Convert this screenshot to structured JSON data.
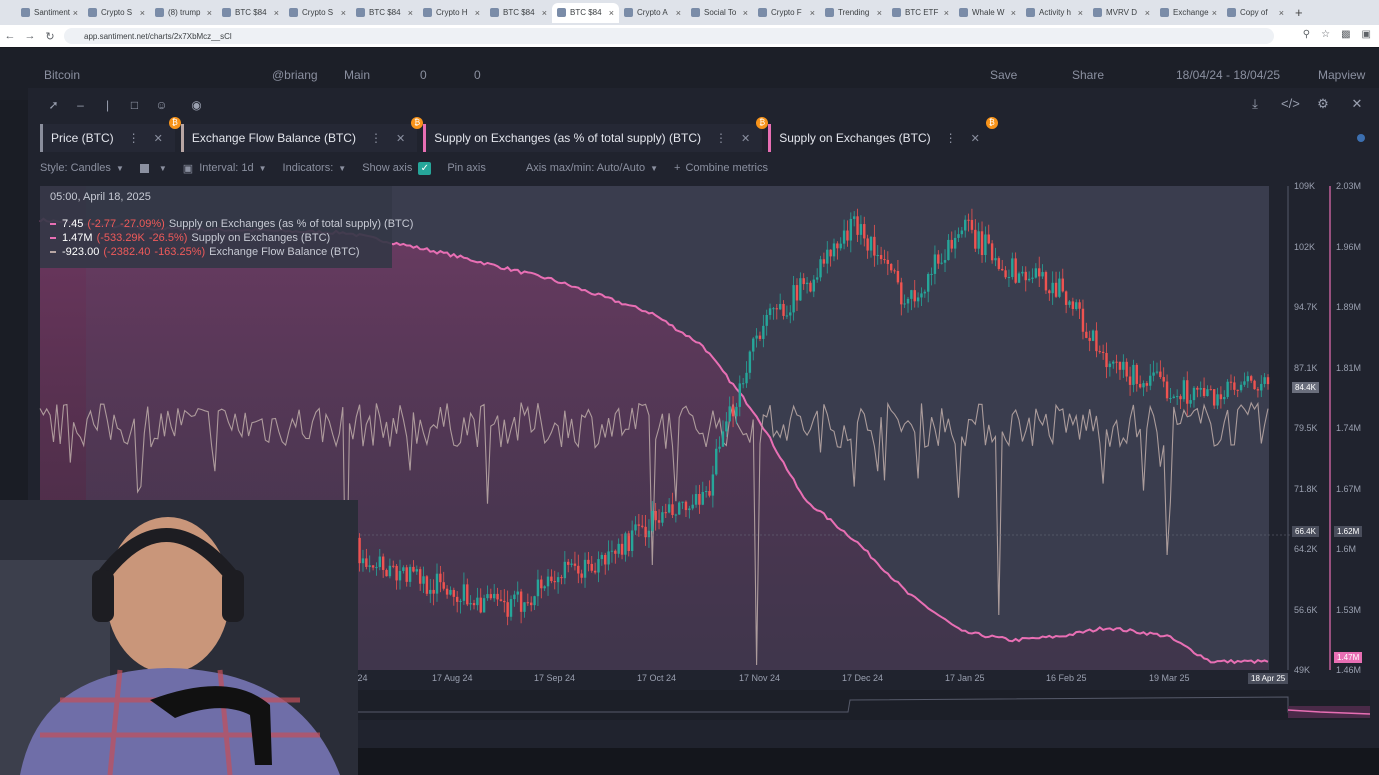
{
  "browser": {
    "tabs": [
      {
        "label": "Santiment"
      },
      {
        "label": "Crypto S"
      },
      {
        "label": "(8) trump"
      },
      {
        "label": "BTC $84"
      },
      {
        "label": "Crypto S"
      },
      {
        "label": "BTC $84"
      },
      {
        "label": "Crypto H"
      },
      {
        "label": "BTC $84"
      },
      {
        "label": "BTC $84",
        "active": true
      },
      {
        "label": "Crypto A"
      },
      {
        "label": "Social To"
      },
      {
        "label": "Crypto F"
      },
      {
        "label": "Trending"
      },
      {
        "label": "BTC ETF"
      },
      {
        "label": "Whale W"
      },
      {
        "label": "Activity h"
      },
      {
        "label": "MVRV D"
      },
      {
        "label": "Exchange"
      },
      {
        "label": "Copy of"
      }
    ],
    "new_tab": "+",
    "url": "app.santiment.net/charts/2x7XbMcz__sCl"
  },
  "app_header": {
    "asset": "Bitcoin",
    "user": "@briang",
    "layout": "Main",
    "comments": "0",
    "likes": "0",
    "save": "Save",
    "share": "Share",
    "date_range": "18/04/24 - 18/04/25",
    "view_mode": "Mapview"
  },
  "metrics": [
    {
      "label": "Price (BTC)",
      "color": "#8a8e9c",
      "badge": "₿"
    },
    {
      "label": "Exchange Flow Balance (BTC)",
      "color": "#b8a6a4",
      "badge": "₿"
    },
    {
      "label": "Supply on Exchanges (as % of total supply) (BTC)",
      "color": "#e86fb4",
      "badge": "₿"
    },
    {
      "label": "Supply on Exchanges (BTC)",
      "color": "#e86fb4",
      "badge": "₿"
    }
  ],
  "settings": {
    "style": "Style: Candles",
    "interval": "Interval: 1d",
    "indicators": "Indicators:",
    "show_axis": "Show axis",
    "pin_axis": "Pin axis",
    "axis_maxmin": "Axis max/min: Auto/Auto",
    "combine": "Combine metrics"
  },
  "tooltip": {
    "date": "05:00, April 18, 2025",
    "rows": [
      {
        "value": "7.45",
        "change": "(-2.77",
        "pct": "-27.09%)",
        "name": "Supply on Exchanges (as % of total supply) (BTC)",
        "color": "#e86fb4"
      },
      {
        "value": "1.47M",
        "change": "(-533.29K",
        "pct": "-26.5%)",
        "name": "Supply on Exchanges (BTC)",
        "color": "#e86fb4"
      },
      {
        "value": "-923.00",
        "change": "(-2382.40",
        "pct": "-163.25%)",
        "name": "Exchange Flow Balance (BTC)",
        "color": "#b8a6a4"
      }
    ]
  },
  "axes": {
    "price_ticks": [
      "109K",
      "102K",
      "94.7K",
      "87.1K",
      "79.5K",
      "71.8K",
      "64.2K",
      "56.6K",
      "49K"
    ],
    "supply_ticks": [
      "2.03M",
      "1.96M",
      "1.89M",
      "1.81M",
      "1.74M",
      "1.67M",
      "1.6M",
      "1.53M",
      "1.46M"
    ],
    "price_flag": "84.4K",
    "cursor_flag": "66.4K",
    "supply_flag_cursor": "1.62M",
    "supply_flag_last": "1.47M",
    "x_ticks": [
      "18 Jul 24",
      "17 Aug 24",
      "17 Sep 24",
      "17 Oct 24",
      "17 Nov 24",
      "17 Dec 24",
      "17 Jan 25",
      "16 Feb 25",
      "19 Mar 25",
      "18 Apr 25"
    ],
    "x_end_flag": "18 Apr 25"
  },
  "chart_data": {
    "type": "line",
    "x_range": [
      "18 Apr 24",
      "18 Apr 25"
    ],
    "series": [
      {
        "name": "Price (BTC)",
        "style": "candles",
        "color_up": "#26a69a",
        "color_down": "#ef5350",
        "y_range": [
          49000,
          109000
        ],
        "x": [
          "18 Jun 24",
          "2 Jul 24",
          "18 Jul 24",
          "1 Aug 24",
          "17 Aug 24",
          "5 Sep 24",
          "17 Sep 24",
          "1 Oct 24",
          "17 Oct 24",
          "1 Nov 24",
          "17 Nov 24",
          "1 Dec 24",
          "17 Dec 24",
          "1 Jan 25",
          "17 Jan 25",
          "1 Feb 25",
          "16 Feb 25",
          "1 Mar 25",
          "19 Mar 25",
          "1 Apr 25",
          "18 Apr 25"
        ],
        "y": [
          66500,
          58000,
          64500,
          61500,
          59000,
          56500,
          60500,
          62000,
          67500,
          69500,
          91000,
          96500,
          104500,
          94500,
          104000,
          98500,
          96500,
          86500,
          84000,
          83000,
          84400
        ]
      },
      {
        "name": "Supply on Exchanges (BTC)",
        "style": "area",
        "color": "#e86fb4",
        "y_range": [
          1460000,
          2030000
        ],
        "x": [
          "18 Apr 24",
          "18 May 24",
          "18 Jun 24",
          "18 Jul 24",
          "17 Aug 24",
          "17 Sep 24",
          "17 Oct 24",
          "1 Nov 24",
          "17 Nov 24",
          "1 Dec 24",
          "17 Dec 24",
          "1 Jan 25",
          "17 Jan 25",
          "1 Feb 25",
          "16 Feb 25",
          "1 Mar 25",
          "19 Mar 25",
          "1 Apr 25",
          "18 Apr 25"
        ],
        "y": [
          1990000,
          1980000,
          1978000,
          1975000,
          1950000,
          1920000,
          1880000,
          1842000,
          1760000,
          1662000,
          1610000,
          1550000,
          1505000,
          1495000,
          1500000,
          1510000,
          1500000,
          1470000,
          1470000
        ]
      },
      {
        "name": "Exchange Flow Balance (BTC)",
        "style": "line",
        "color": "#b8a6a4",
        "x": [
          "18 Apr 24",
          "18 Jul 24",
          "1 Aug 24",
          "17 Sep 24",
          "17 Oct 24",
          "17 Nov 24",
          "17 Jan 25",
          "28 Jan 25",
          "16 Feb 25",
          "19 Mar 25",
          "18 Apr 25"
        ],
        "y": [
          0,
          -40000,
          500,
          -300,
          -28000,
          -48000,
          -200,
          -38000,
          200,
          -26000,
          -923
        ]
      }
    ]
  }
}
